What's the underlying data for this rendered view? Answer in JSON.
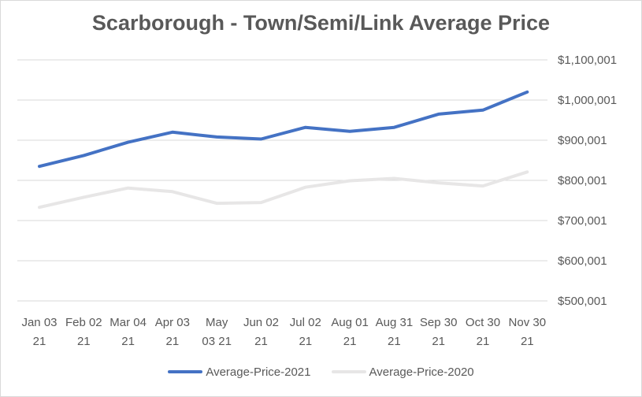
{
  "chart_data": {
    "type": "line",
    "title": "Scarborough - Town/Semi/Link Average Price",
    "xlabel": "",
    "ylabel": "",
    "categories": [
      [
        "Jan 03",
        "21"
      ],
      [
        "Feb 02",
        "21"
      ],
      [
        "Mar 04",
        "21"
      ],
      [
        "Apr 03",
        "21"
      ],
      [
        "May",
        "03 21"
      ],
      [
        "Jun 02",
        "21"
      ],
      [
        "Jul 02",
        "21"
      ],
      [
        "Aug 01",
        "21"
      ],
      [
        "Aug 31",
        "21"
      ],
      [
        "Sep 30",
        "21"
      ],
      [
        "Oct 30",
        "21"
      ],
      [
        "Nov 30",
        "21"
      ]
    ],
    "ylim": [
      500001,
      1100001
    ],
    "yticks": [
      "$500,001",
      "$600,001",
      "$700,001",
      "$800,001",
      "$900,001",
      "$1,000,001",
      "$1,100,001"
    ],
    "ytick_values": [
      500001,
      600001,
      700001,
      800001,
      900001,
      1000001,
      1100001
    ],
    "grid": true,
    "legend_position": "bottom",
    "series": [
      {
        "name": "Average-Price-2021",
        "color": "#4472c4",
        "values": [
          835000,
          862000,
          895000,
          920000,
          908000,
          903000,
          932000,
          922000,
          932000,
          965000,
          975000,
          1020000
        ]
      },
      {
        "name": "Average-Price-2020",
        "color": "#e7e6e6",
        "values": [
          733000,
          758000,
          781000,
          772000,
          743000,
          745000,
          783000,
          799000,
          805000,
          794000,
          786000,
          821000
        ]
      }
    ]
  }
}
